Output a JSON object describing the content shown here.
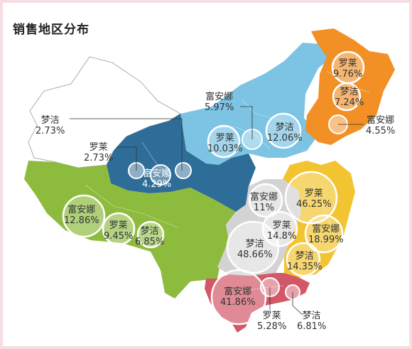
{
  "title": "销售地区分布",
  "colors": {
    "northwest": "#ffffff",
    "tibet_qinghai": "#2e6d97",
    "north": "#7cc3e4",
    "northeast": "#f29025",
    "southwest": "#8dbb3e",
    "central_east": "#f3c431",
    "middle": "#d3d3d3",
    "south": "#d25867"
  },
  "labels": {
    "xj_mengjie": {
      "brand": "梦洁",
      "value": "2.73%"
    },
    "xj_luolai": {
      "brand": "罗莱",
      "value": "2.73%"
    },
    "qh_fuanna": {
      "brand": "富安娜",
      "value": "4.29%"
    },
    "north_fuanna": {
      "brand": "富安娜",
      "value": "5.97%"
    },
    "north_luolai": {
      "brand": "罗莱",
      "value": "10.03%"
    },
    "north_mengjie": {
      "brand": "梦洁",
      "value": "12.06%"
    },
    "ne_luolai": {
      "brand": "罗莱",
      "value": "9.76%"
    },
    "ne_mengjie": {
      "brand": "梦洁",
      "value": "7.24%"
    },
    "ne_fuanna": {
      "brand": "富安娜",
      "value": "4.55%"
    },
    "sw_fuanna": {
      "brand": "富安娜",
      "value": "12.86%"
    },
    "sw_luolai": {
      "brand": "罗莱",
      "value": "9.45%"
    },
    "sw_mengjie": {
      "brand": "梦洁",
      "value": "6.85%"
    },
    "mid_fuanna": {
      "brand": "富安娜",
      "value": "11%"
    },
    "mid_luolai": {
      "brand": "罗莱",
      "value": "14.8%"
    },
    "mid_mengjie": {
      "brand": "梦洁",
      "value": "48.66%"
    },
    "east_luolai": {
      "brand": "罗莱",
      "value": "46.25%"
    },
    "east_fuanna": {
      "brand": "富安娜",
      "value": "18.99%"
    },
    "east_mengjie": {
      "brand": "梦洁",
      "value": "14.35%"
    },
    "south_fuanna": {
      "brand": "富安娜",
      "value": "41.86%"
    },
    "south_luolai": {
      "brand": "罗莱",
      "value": "5.28%"
    },
    "south_mengjie": {
      "brand": "梦洁",
      "value": "6.81%"
    }
  }
}
